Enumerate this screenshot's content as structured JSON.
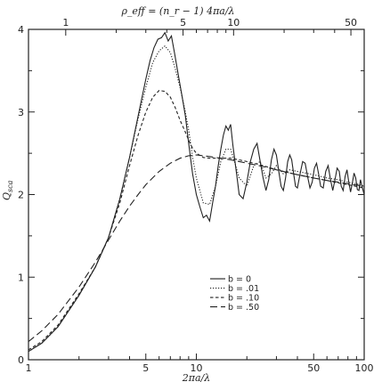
{
  "chart_data": {
    "type": "line",
    "x_scale": "log",
    "xlim": [
      1,
      100
    ],
    "ylim": [
      0,
      4
    ],
    "xlabel": "2πa/λ",
    "ylabel": "Q",
    "ylabel_sub": "sca",
    "top_axis_label": "ρ_eff = (n_r − 1) 4πa/λ",
    "x_ticks": [
      1,
      5,
      10,
      50,
      100
    ],
    "x_tick_labels": [
      "1",
      "5",
      "10",
      "50",
      "100"
    ],
    "y_ticks": [
      0,
      1,
      2,
      3,
      4
    ],
    "y_tick_labels": [
      "0",
      "1",
      "2",
      "3",
      "4"
    ],
    "top_ticks": [
      1,
      5,
      10,
      50
    ],
    "top_tick_labels": [
      "1",
      "5",
      "10",
      "50"
    ],
    "top_axis_factor": 0.6,
    "grid": false,
    "legend_position": "center-right",
    "series": [
      {
        "name": "b = 0",
        "style": "solid",
        "x": [
          1.0,
          1.2,
          1.5,
          2.0,
          2.5,
          3.0,
          3.5,
          4.0,
          4.5,
          5.0,
          5.3,
          5.6,
          5.9,
          6.2,
          6.5,
          6.8,
          7.1,
          7.4,
          7.8,
          8.2,
          8.6,
          9.0,
          9.5,
          10.0,
          10.5,
          11.0,
          11.5,
          12.0,
          12.5,
          13.0,
          13.5,
          14.0,
          14.5,
          15.0,
          15.5,
          16.0,
          16.5,
          17.0,
          17.5,
          18.0,
          19.0,
          20.0,
          21.0,
          22.0,
          23.0,
          24.0,
          25.0,
          26.0,
          27.0,
          28.0,
          29.0,
          30.0,
          31.0,
          32.0,
          33.0,
          34.0,
          35.0,
          36.0,
          37.0,
          38.0,
          39.0,
          40.0,
          41.5,
          43.0,
          44.5,
          46.0,
          47.5,
          49.0,
          50.5,
          52.0,
          53.5,
          55.0,
          57.0,
          59.0,
          61.0,
          63.0,
          65.0,
          67.0,
          69.0,
          71.0,
          73.0,
          75.0,
          77.0,
          79.0,
          81.0,
          83.0,
          85.0,
          87.0,
          89.0,
          91.0,
          93.0,
          95.0,
          97.0,
          100.0
        ],
        "y": [
          0.1,
          0.2,
          0.4,
          0.78,
          1.12,
          1.48,
          1.95,
          2.45,
          2.95,
          3.4,
          3.62,
          3.78,
          3.88,
          3.9,
          3.96,
          3.86,
          3.92,
          3.72,
          3.45,
          3.2,
          2.95,
          2.62,
          2.25,
          2.0,
          1.85,
          1.72,
          1.75,
          1.68,
          1.9,
          2.1,
          2.35,
          2.55,
          2.72,
          2.83,
          2.78,
          2.85,
          2.6,
          2.4,
          2.2,
          2.0,
          1.95,
          2.15,
          2.4,
          2.55,
          2.62,
          2.4,
          2.2,
          2.05,
          2.18,
          2.42,
          2.55,
          2.48,
          2.28,
          2.1,
          2.05,
          2.2,
          2.4,
          2.48,
          2.42,
          2.25,
          2.1,
          2.08,
          2.25,
          2.4,
          2.38,
          2.22,
          2.08,
          2.15,
          2.32,
          2.38,
          2.25,
          2.1,
          2.08,
          2.28,
          2.35,
          2.18,
          2.05,
          2.18,
          2.32,
          2.28,
          2.1,
          2.05,
          2.22,
          2.3,
          2.15,
          2.03,
          2.14,
          2.26,
          2.2,
          2.06,
          2.05,
          2.18,
          2.1,
          2.0
        ]
      },
      {
        "name": "b = .01",
        "style": "dotted",
        "x": [
          1.0,
          1.2,
          1.5,
          2.0,
          2.5,
          3.0,
          3.5,
          4.0,
          4.5,
          5.0,
          5.5,
          6.0,
          6.5,
          7.0,
          7.5,
          8.0,
          8.5,
          9.0,
          9.5,
          10.0,
          11.0,
          12.0,
          13.0,
          14.0,
          15.0,
          16.0,
          17.0,
          18.0,
          20.0,
          22.0,
          24.0,
          26.0,
          28.0,
          30.0,
          33.0,
          36.0,
          40.0,
          45.0,
          50.0,
          60.0,
          70.0,
          80.0,
          90.0,
          100.0
        ],
        "y": [
          0.1,
          0.2,
          0.4,
          0.78,
          1.12,
          1.48,
          1.95,
          2.45,
          2.92,
          3.3,
          3.6,
          3.74,
          3.8,
          3.72,
          3.52,
          3.3,
          3.05,
          2.78,
          2.45,
          2.2,
          1.9,
          1.88,
          2.1,
          2.4,
          2.55,
          2.55,
          2.38,
          2.2,
          2.1,
          2.35,
          2.4,
          2.2,
          2.25,
          2.35,
          2.25,
          2.3,
          2.28,
          2.26,
          2.24,
          2.2,
          2.18,
          2.15,
          2.13,
          2.1
        ]
      },
      {
        "name": "b = .10",
        "style": "dashed",
        "x": [
          1.0,
          1.2,
          1.5,
          2.0,
          2.5,
          3.0,
          3.5,
          4.0,
          4.5,
          5.0,
          5.5,
          6.0,
          6.5,
          7.0,
          7.5,
          8.0,
          8.5,
          9.0,
          9.5,
          10.0,
          11.0,
          12.0,
          13.0,
          14.0,
          16.0,
          18.0,
          20.0,
          25.0,
          30.0,
          40.0,
          50.0,
          60.0,
          70.0,
          80.0,
          100.0
        ],
        "y": [
          0.12,
          0.22,
          0.42,
          0.8,
          1.12,
          1.48,
          1.9,
          2.35,
          2.72,
          3.0,
          3.18,
          3.26,
          3.25,
          3.18,
          3.05,
          2.9,
          2.78,
          2.66,
          2.56,
          2.5,
          2.45,
          2.44,
          2.44,
          2.44,
          2.44,
          2.42,
          2.4,
          2.35,
          2.3,
          2.24,
          2.2,
          2.17,
          2.14,
          2.12,
          2.08
        ]
      },
      {
        "name": "b = .50",
        "style": "long-dashed",
        "x": [
          1.0,
          1.2,
          1.5,
          2.0,
          2.5,
          3.0,
          3.5,
          4.0,
          4.5,
          5.0,
          6.0,
          7.0,
          8.0,
          9.0,
          10.0,
          11.0,
          12.0,
          14.0,
          16.0,
          18.0,
          20.0,
          25.0,
          30.0,
          40.0,
          50.0,
          60.0,
          70.0,
          80.0,
          100.0
        ],
        "y": [
          0.22,
          0.35,
          0.55,
          0.88,
          1.18,
          1.45,
          1.68,
          1.86,
          2.0,
          2.12,
          2.28,
          2.38,
          2.44,
          2.47,
          2.48,
          2.47,
          2.46,
          2.44,
          2.42,
          2.4,
          2.38,
          2.34,
          2.3,
          2.24,
          2.2,
          2.17,
          2.15,
          2.13,
          2.1
        ]
      }
    ]
  }
}
